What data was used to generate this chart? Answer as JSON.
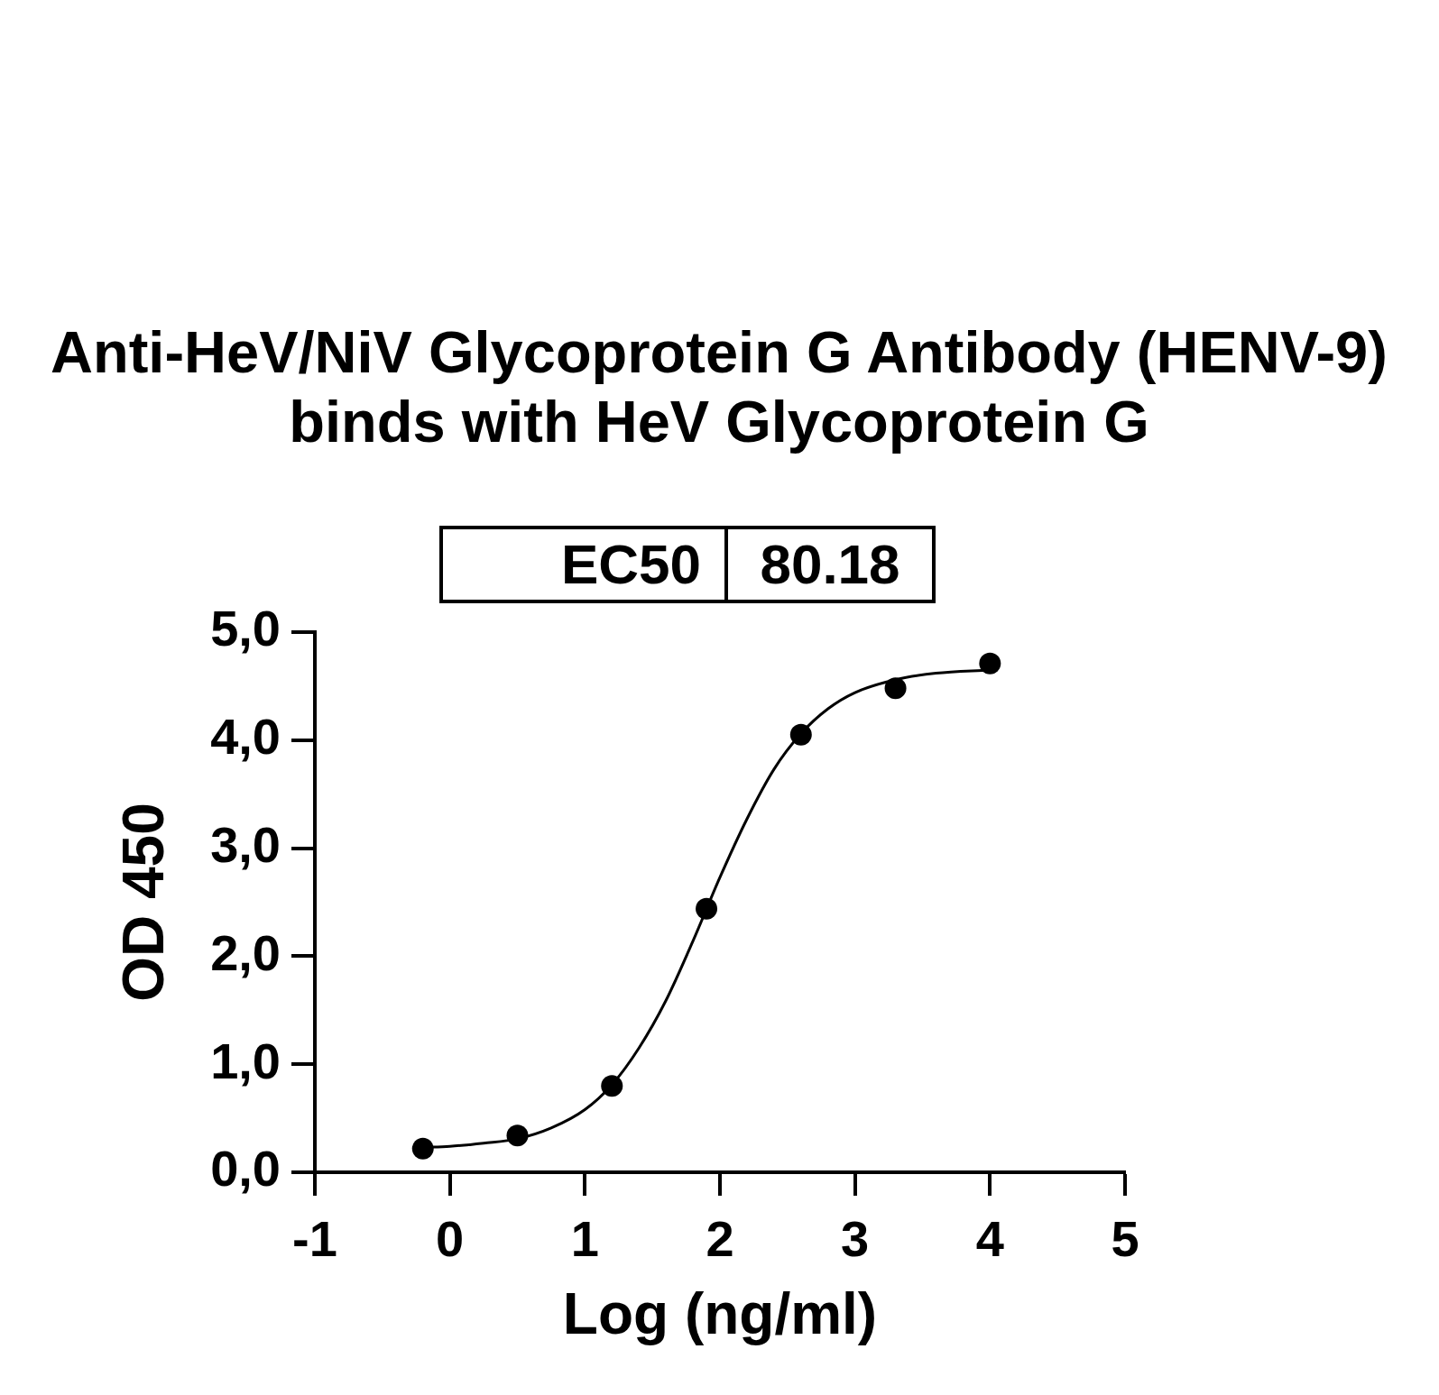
{
  "chart_data": {
    "type": "scatter",
    "title": "Anti-HeV/NiV Glycoprotein G Antibody (HENV-9) binds with HeV Glycoprotein G",
    "xlabel": "Log (ng/ml)",
    "ylabel": "OD 450",
    "annotations": [
      "EC50",
      "80.18"
    ],
    "marker": "circle",
    "series": [
      {
        "color": "#000000",
        "x": [
          -0.2,
          0.5,
          1.2,
          1.9,
          2.6,
          3.3,
          4.0
        ],
        "values": [
          0.22,
          0.34,
          0.8,
          2.44,
          4.05,
          4.48,
          4.71
        ]
      },
      {
        "type": "line",
        "color": "#000000",
        "marker": "none",
        "x": [
          -0.2,
          0,
          0.25,
          0.5,
          0.75,
          1.0,
          1.2,
          1.4,
          1.6,
          1.8,
          2.0,
          2.2,
          2.4,
          2.6,
          2.8,
          3.0,
          3.3,
          3.6,
          4.0
        ],
        "values": [
          0.23,
          0.24,
          0.27,
          0.31,
          0.41,
          0.58,
          0.81,
          1.15,
          1.59,
          2.14,
          2.73,
          3.27,
          3.73,
          4.06,
          4.29,
          4.44,
          4.56,
          4.62,
          4.65
        ]
      }
    ],
    "xlim": [
      -1,
      5
    ],
    "xticks": [
      -1,
      0,
      1,
      2,
      3,
      4,
      5
    ],
    "ylim": [
      0,
      5
    ],
    "yticks": [
      {
        "value": 0,
        "label": "0,0"
      },
      {
        "value": 1,
        "label": "1,0"
      },
      {
        "value": 2,
        "label": "2,0"
      },
      {
        "value": 3,
        "label": "3,0"
      },
      {
        "value": 4,
        "label": "4,0"
      },
      {
        "value": 5,
        "label": "5,0"
      }
    ]
  }
}
